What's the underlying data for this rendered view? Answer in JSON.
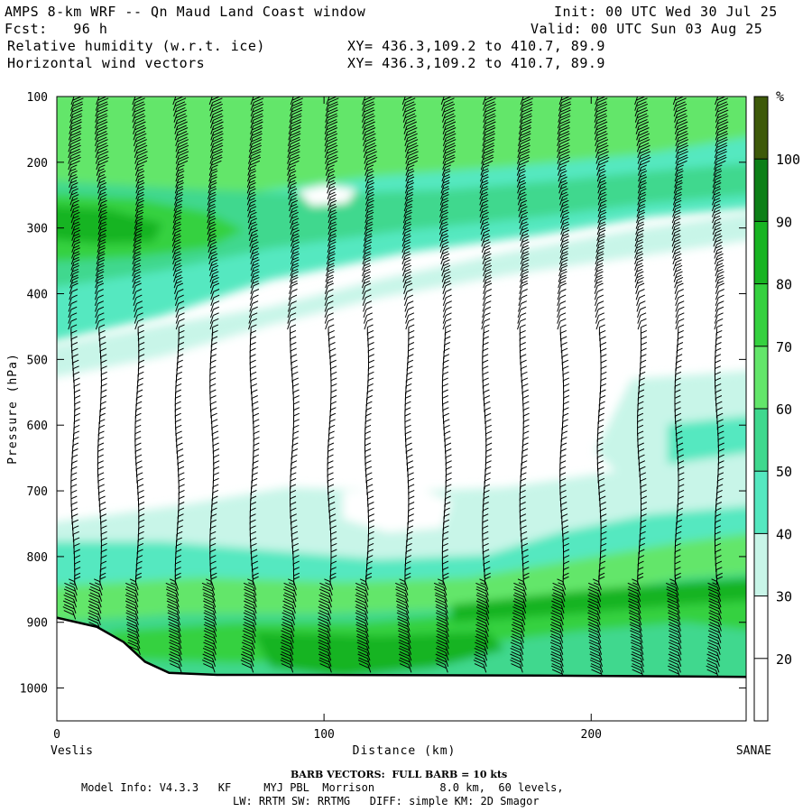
{
  "header": {
    "title": "AMPS 8-km WRF -- Qn Maud Land Coast window",
    "init": "Init: 00 UTC Wed 30 Jul 25",
    "fcst": "Fcst:   96 h",
    "valid": "Valid: 00 UTC Sun 03 Aug 25",
    "field1": "Relative humidity (w.r.t. ice)",
    "field2": "Horizontal wind vectors",
    "xy1": "XY= 436.3,109.2 to 410.7, 89.9",
    "xy2": "XY= 436.3,109.2 to 410.7, 89.9"
  },
  "axes": {
    "ylabel": "Pressure (hPa)",
    "xlabel": "Distance (km)",
    "left_end": "Veslis",
    "right_end": "SANAE"
  },
  "chart_data": {
    "type": "heatmap",
    "title": "Relative humidity (w.r.t. ice)",
    "xlabel": "Distance (km)",
    "ylabel": "Pressure (hPa)",
    "xlim": [
      0,
      258
    ],
    "ylim": [
      1050,
      100
    ],
    "x_ticks": [
      0,
      100,
      200
    ],
    "y_ticks": [
      100,
      200,
      300,
      400,
      500,
      600,
      700,
      800,
      900,
      1000
    ],
    "colorbar": {
      "unit": "%",
      "levels": [
        20,
        30,
        40,
        50,
        60,
        70,
        80,
        90,
        100
      ],
      "colors": [
        "#ffffff",
        "#ffffff",
        "#c8f5e8",
        "#55e8c0",
        "#3fd88e",
        "#63e66a",
        "#35d13f",
        "#18b422",
        "#0c7f17",
        "#3e5a0a"
      ]
    },
    "wind_barb_columns_km": [
      6,
      16,
      30,
      45,
      58,
      73,
      88,
      102,
      116,
      131,
      145,
      160,
      174,
      189,
      203,
      218,
      232,
      247
    ],
    "terrain_surface_hpa": [
      {
        "x": 0,
        "p": 893
      },
      {
        "x": 15,
        "p": 907
      },
      {
        "x": 25,
        "p": 930
      },
      {
        "x": 33,
        "p": 960
      },
      {
        "x": 42,
        "p": 977
      },
      {
        "x": 60,
        "p": 980
      },
      {
        "x": 100,
        "p": 980
      },
      {
        "x": 180,
        "p": 981
      },
      {
        "x": 258,
        "p": 983
      }
    ]
  },
  "footer": {
    "barb": "BARB VECTORS:  FULL BARB = 10 kts",
    "model": "Model Info: V4.3.3   KF     MYJ PBL  Morrison          8.0 km,  60 levels,",
    "physics": "LW: RRTM SW: RRTMG   DIFF: simple KM: 2D Smagor"
  }
}
